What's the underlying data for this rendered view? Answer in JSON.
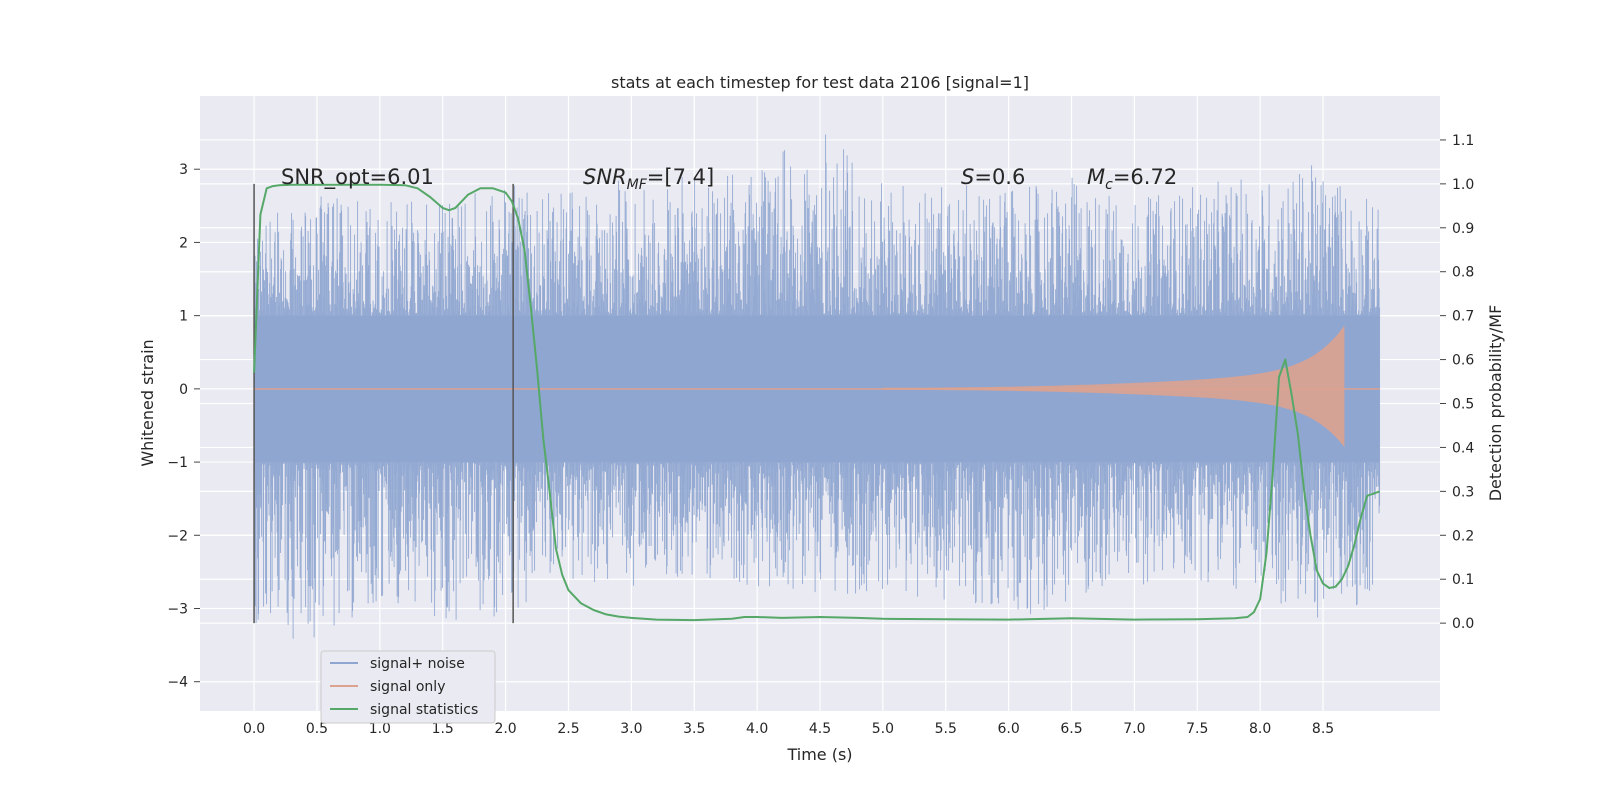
{
  "chart_data": {
    "type": "line",
    "title": "stats at each timestep for test data 2106 [signal=1]",
    "xlabel": "Time (s)",
    "ylabel": "Whitened strain",
    "y2label": "Detection probability/MF",
    "xlim": [
      -0.43,
      9.43
    ],
    "ylim": [
      -4.4,
      4.0
    ],
    "y2lim": [
      -0.2,
      1.2
    ],
    "x_ticks": [
      "0.0",
      "0.5",
      "1.0",
      "1.5",
      "2.0",
      "2.5",
      "3.0",
      "3.5",
      "4.0",
      "4.5",
      "5.0",
      "5.5",
      "6.0",
      "6.5",
      "7.0",
      "7.5",
      "8.0",
      "8.5"
    ],
    "y_ticks": [
      "3",
      "2",
      "1",
      "0",
      "−1",
      "−2",
      "−3",
      "−4"
    ],
    "y2_ticks": [
      "1.1",
      "1.0",
      "0.9",
      "0.8",
      "0.7",
      "0.6",
      "0.5",
      "0.4",
      "0.3",
      "0.2",
      "0.1",
      "0.0"
    ],
    "grid": true,
    "legend_position": "lower-left",
    "annotations": {
      "snr_opt": "SNR_opt=6.01",
      "snr_mf_main": "SNR",
      "snr_mf_sub": "MF",
      "snr_mf_val": "=[7.4]",
      "s_main": "S",
      "s_val": "=0.6",
      "mc_main": "M",
      "mc_sub": "c",
      "mc_val": "=6.72"
    },
    "vertical_markers": [
      0.0,
      2.06
    ],
    "series": [
      {
        "name": "signal+ noise",
        "color": "#8fa6d0",
        "x_range": [
          0.0,
          8.95
        ],
        "envelope": [
          [
            0.0,
            -3.2,
            2.4
          ],
          [
            0.5,
            -3.6,
            2.7
          ],
          [
            1.0,
            -2.9,
            2.6
          ],
          [
            1.5,
            -3.2,
            2.6
          ],
          [
            2.0,
            -3.1,
            2.8
          ],
          [
            2.5,
            -2.6,
            2.7
          ],
          [
            3.0,
            -2.7,
            2.9
          ],
          [
            3.5,
            -2.6,
            2.9
          ],
          [
            4.0,
            -2.7,
            3.0
          ],
          [
            4.5,
            -2.8,
            3.6
          ],
          [
            5.0,
            -2.8,
            2.8
          ],
          [
            5.5,
            -2.9,
            2.9
          ],
          [
            6.0,
            -3.2,
            2.7
          ],
          [
            6.5,
            -2.9,
            2.9
          ],
          [
            7.0,
            -2.7,
            2.6
          ],
          [
            7.5,
            -2.6,
            2.8
          ],
          [
            8.0,
            -2.9,
            2.9
          ],
          [
            8.5,
            -3.2,
            3.1
          ],
          [
            8.95,
            -2.8,
            2.5
          ]
        ]
      },
      {
        "name": "signal only",
        "color": "#dda28f",
        "chirp_start": 5.0,
        "chirp_end": 8.67,
        "peak_amplitude": 0.6
      },
      {
        "name": "signal statistics",
        "color": "#55a868",
        "axis": "y2",
        "x": [
          0.0,
          0.05,
          0.1,
          0.15,
          0.2,
          0.3,
          0.5,
          0.8,
          1.0,
          1.2,
          1.3,
          1.4,
          1.5,
          1.55,
          1.6,
          1.65,
          1.7,
          1.8,
          1.9,
          2.0,
          2.05,
          2.1,
          2.15,
          2.2,
          2.25,
          2.3,
          2.35,
          2.4,
          2.45,
          2.5,
          2.6,
          2.7,
          2.8,
          2.9,
          3.0,
          3.2,
          3.5,
          3.8,
          3.9,
          4.0,
          4.2,
          4.5,
          4.8,
          5.0,
          5.5,
          6.0,
          6.5,
          7.0,
          7.5,
          7.8,
          7.9,
          7.95,
          8.0,
          8.05,
          8.1,
          8.15,
          8.2,
          8.25,
          8.3,
          8.35,
          8.4,
          8.45,
          8.5,
          8.55,
          8.6,
          8.65,
          8.7,
          8.75,
          8.8,
          8.85,
          8.95
        ],
        "y": [
          0.57,
          0.93,
          0.99,
          0.995,
          0.997,
          0.998,
          0.998,
          0.998,
          0.998,
          0.997,
          0.99,
          0.97,
          0.945,
          0.94,
          0.945,
          0.96,
          0.975,
          0.99,
          0.99,
          0.98,
          0.96,
          0.92,
          0.85,
          0.72,
          0.58,
          0.42,
          0.3,
          0.17,
          0.11,
          0.075,
          0.045,
          0.03,
          0.02,
          0.015,
          0.012,
          0.008,
          0.007,
          0.01,
          0.014,
          0.014,
          0.012,
          0.014,
          0.012,
          0.01,
          0.009,
          0.008,
          0.011,
          0.008,
          0.009,
          0.011,
          0.014,
          0.025,
          0.055,
          0.16,
          0.34,
          0.56,
          0.6,
          0.52,
          0.43,
          0.3,
          0.2,
          0.12,
          0.09,
          0.08,
          0.083,
          0.1,
          0.13,
          0.18,
          0.24,
          0.29,
          0.3
        ]
      }
    ]
  }
}
